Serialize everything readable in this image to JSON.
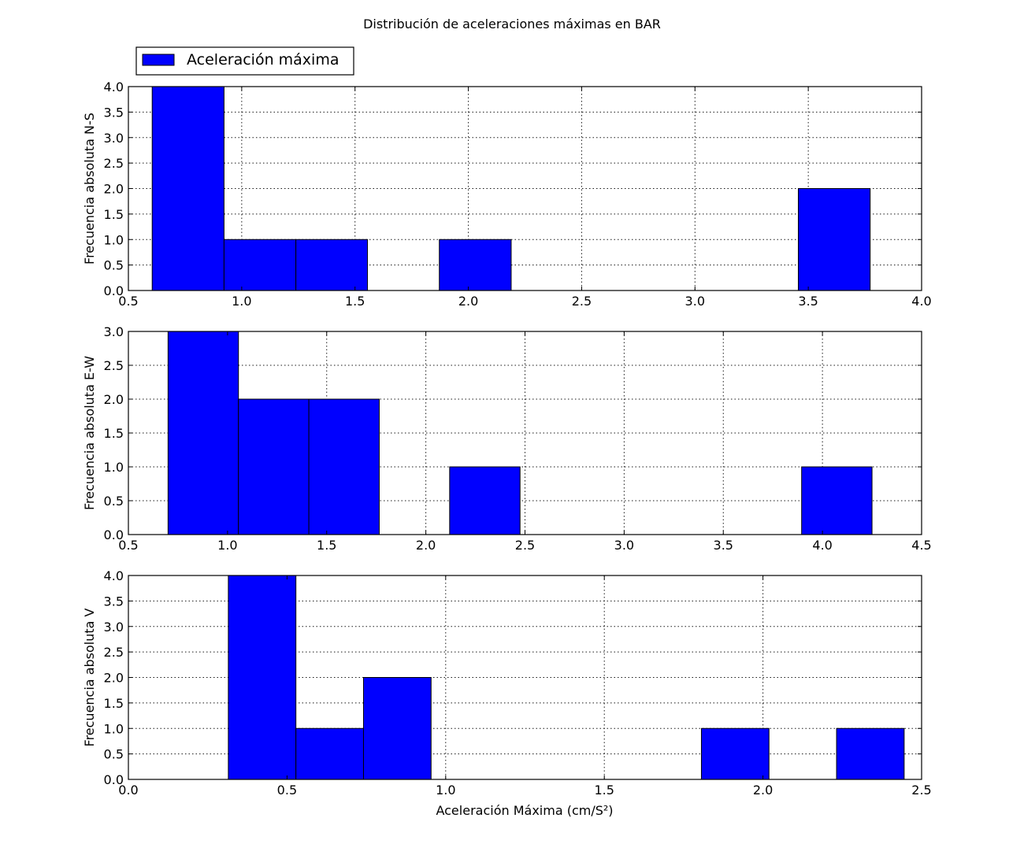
{
  "figure": {
    "title": "Distribución de aceleraciones máximas en BAR",
    "bar_color": "#0000ff",
    "edge_color": "#000000",
    "legend": {
      "label": "Aceleración máxima",
      "placement": "above-top-left"
    }
  },
  "chart_data": [
    {
      "type": "bar",
      "subtype": "histogram",
      "title": "",
      "xlabel": "",
      "ylabel": "Frecuencia absoluta N-S",
      "xlim": [
        0.5,
        4.0
      ],
      "ylim": [
        0.0,
        4.0
      ],
      "xticks": [
        "0.5",
        "1.0",
        "1.5",
        "2.0",
        "2.5",
        "3.0",
        "3.5",
        "4.0"
      ],
      "yticks": [
        "0.0",
        "0.5",
        "1.0",
        "1.5",
        "2.0",
        "2.5",
        "3.0",
        "3.5",
        "4.0"
      ],
      "grid": true,
      "bins": [
        0.605,
        0.922,
        1.239,
        1.555,
        1.872,
        2.189,
        2.506,
        2.823,
        3.139,
        3.456,
        3.773
      ],
      "counts": [
        4,
        1,
        1,
        0,
        1,
        0,
        0,
        0,
        0,
        2
      ]
    },
    {
      "type": "bar",
      "subtype": "histogram",
      "title": "",
      "xlabel": "",
      "ylabel": "Frecuencia absoluta E-W",
      "xlim": [
        0.5,
        4.5
      ],
      "ylim": [
        0.0,
        3.0
      ],
      "xticks": [
        "0.5",
        "1.0",
        "1.5",
        "2.0",
        "2.5",
        "3.0",
        "3.5",
        "4.0",
        "4.5"
      ],
      "yticks": [
        "0.0",
        "0.5",
        "1.0",
        "1.5",
        "2.0",
        "2.5",
        "3.0"
      ],
      "grid": true,
      "bins": [
        0.7,
        1.055,
        1.41,
        1.765,
        2.12,
        2.475,
        2.83,
        3.185,
        3.54,
        3.895,
        4.25
      ],
      "counts": [
        3,
        2,
        2,
        0,
        1,
        0,
        0,
        0,
        0,
        1
      ]
    },
    {
      "type": "bar",
      "subtype": "histogram",
      "title": "",
      "xlabel": "Aceleración Máxima (cm/S²)",
      "ylabel": "Frecuencia absoluta V",
      "xlim": [
        0.0,
        2.5
      ],
      "ylim": [
        0.0,
        4.0
      ],
      "xticks": [
        "0.0",
        "0.5",
        "1.0",
        "1.5",
        "2.0",
        "2.5"
      ],
      "yticks": [
        "0.0",
        "0.5",
        "1.0",
        "1.5",
        "2.0",
        "2.5",
        "3.0",
        "3.5",
        "4.0"
      ],
      "grid": true,
      "bins": [
        0.315,
        0.528,
        0.741,
        0.954,
        1.167,
        1.38,
        1.593,
        1.806,
        2.019,
        2.232,
        2.445
      ],
      "counts": [
        4,
        1,
        2,
        0,
        0,
        0,
        0,
        1,
        0,
        1
      ]
    }
  ]
}
